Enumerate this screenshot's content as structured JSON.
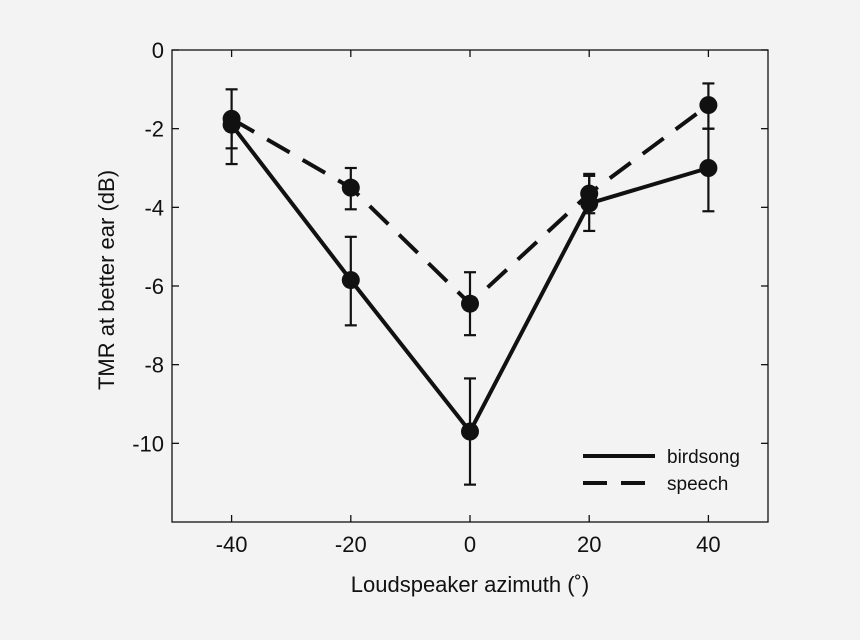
{
  "chart_data": {
    "type": "line",
    "title": "",
    "xlabel": "Loudspeaker azimuth (˚)",
    "ylabel": "TMR at better ear (dB)",
    "xlim": [
      -50,
      50
    ],
    "ylim": [
      -12,
      0
    ],
    "x": [
      -40,
      -20,
      0,
      20,
      40
    ],
    "xticks": [
      -40,
      -20,
      0,
      20,
      40
    ],
    "yticks": [
      0,
      -2,
      -4,
      -6,
      -8,
      -10
    ],
    "xtick_labels": [
      "-40",
      "-20",
      "0",
      "20",
      "40"
    ],
    "ytick_labels": [
      "0",
      "-2",
      "-4",
      "-6",
      "-8",
      "-10"
    ],
    "legend_position": "bottom-right",
    "series": [
      {
        "name": "birdsong",
        "style": "solid",
        "values": [
          -1.9,
          -5.85,
          -9.7,
          -3.9,
          -3.0
        ],
        "error_low": [
          -2.9,
          -7.0,
          -11.05,
          -4.6,
          -4.1
        ],
        "error_high": [
          -1.75,
          -4.75,
          -8.35,
          -3.2,
          -2.0
        ]
      },
      {
        "name": "speech",
        "style": "dashed",
        "values": [
          -1.75,
          -3.5,
          -6.45,
          -3.65,
          -1.4
        ],
        "error_low": [
          -2.5,
          -4.05,
          -7.25,
          -4.15,
          -2.0
        ],
        "error_high": [
          -1.0,
          -3.0,
          -5.65,
          -3.15,
          -0.85
        ]
      }
    ],
    "colors": {
      "line": "#111111",
      "background": "#f3f3f3",
      "plot_background": "#f3f3f3"
    }
  }
}
